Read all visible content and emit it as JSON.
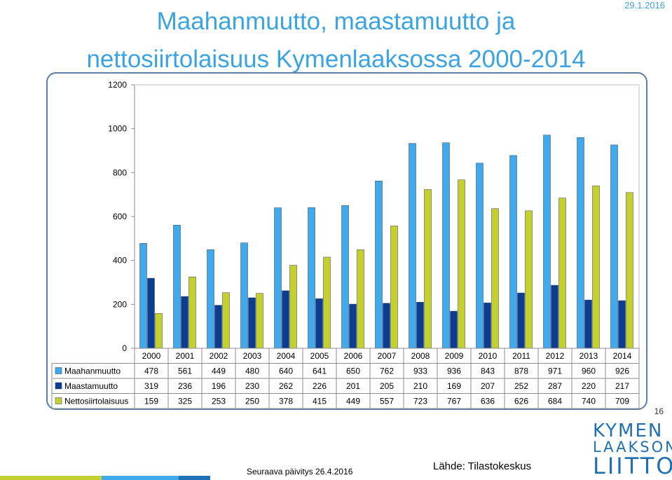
{
  "header": {
    "title_line1": "Maahanmuutto, maastamuutto ja",
    "title_line2": "nettosiirtolaisuus Kymenlaaksossa 2000-2014",
    "date": "29.1.2016"
  },
  "page_number": "16",
  "footer": {
    "update": "Seuraava päivitys 26.4.2016",
    "source": "Lähde: Tilastokeskus"
  },
  "logo": {
    "line1": "KYMEN",
    "line2": "LAAKSON",
    "line3": "LIITTO"
  },
  "colors": {
    "maahanmuutto": "#3fa9ec",
    "maastamuutto": "#0b3d91",
    "nettosiirtolaisuus": "#c5d02f"
  },
  "chart_data": {
    "type": "bar",
    "title": "Maahanmuutto, maastamuutto ja nettosiirtolaisuus Kymenlaaksossa 2000-2014",
    "categories": [
      "2000",
      "2001",
      "2002",
      "2003",
      "2004",
      "2005",
      "2006",
      "2007",
      "2008",
      "2009",
      "2010",
      "2011",
      "2012",
      "2013",
      "2014"
    ],
    "series": [
      {
        "name": "Maahanmuutto",
        "values": [
          478,
          561,
          449,
          480,
          640,
          641,
          650,
          762,
          933,
          936,
          843,
          878,
          971,
          960,
          926
        ]
      },
      {
        "name": "Maastamuutto",
        "values": [
          319,
          236,
          196,
          230,
          262,
          226,
          201,
          205,
          210,
          169,
          207,
          252,
          287,
          220,
          217
        ]
      },
      {
        "name": "Nettosiirtolaisuus",
        "values": [
          159,
          325,
          253,
          250,
          378,
          415,
          449,
          557,
          723,
          767,
          636,
          626,
          684,
          740,
          709
        ]
      }
    ],
    "yticks": [
      0,
      200,
      400,
      600,
      800,
      1000,
      1200
    ],
    "ylim": [
      0,
      1200
    ],
    "grid": false,
    "legend": "data-table-left"
  }
}
